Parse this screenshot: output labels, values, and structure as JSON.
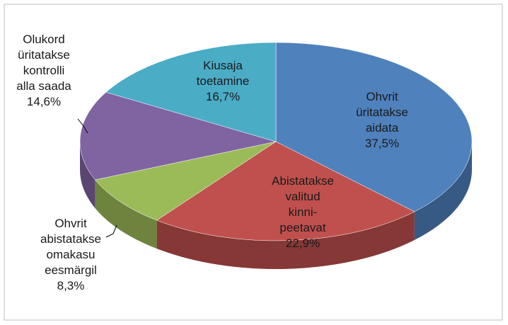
{
  "chart_data": {
    "type": "pie3d",
    "categories": [
      "Ohvrit\nüritatakse\naidata",
      "Abistatakse\nvalitud\nkinni-\npeetavat",
      "Ohvrit\nabistatakse\nomakasu\neesmärgil",
      "Olukord\nüritatakse\nkontrolli\nalla saada",
      "Kiusaja\ntoetamine"
    ],
    "values": [
      37.5,
      22.9,
      8.3,
      14.6,
      16.7
    ],
    "value_labels": [
      "37,5%",
      "22,9%",
      "8,3%",
      "14,6%",
      "16,7%"
    ],
    "colors": [
      "#4f81bd",
      "#c0504d",
      "#9bbb59",
      "#8064a2",
      "#4bacc6"
    ]
  }
}
